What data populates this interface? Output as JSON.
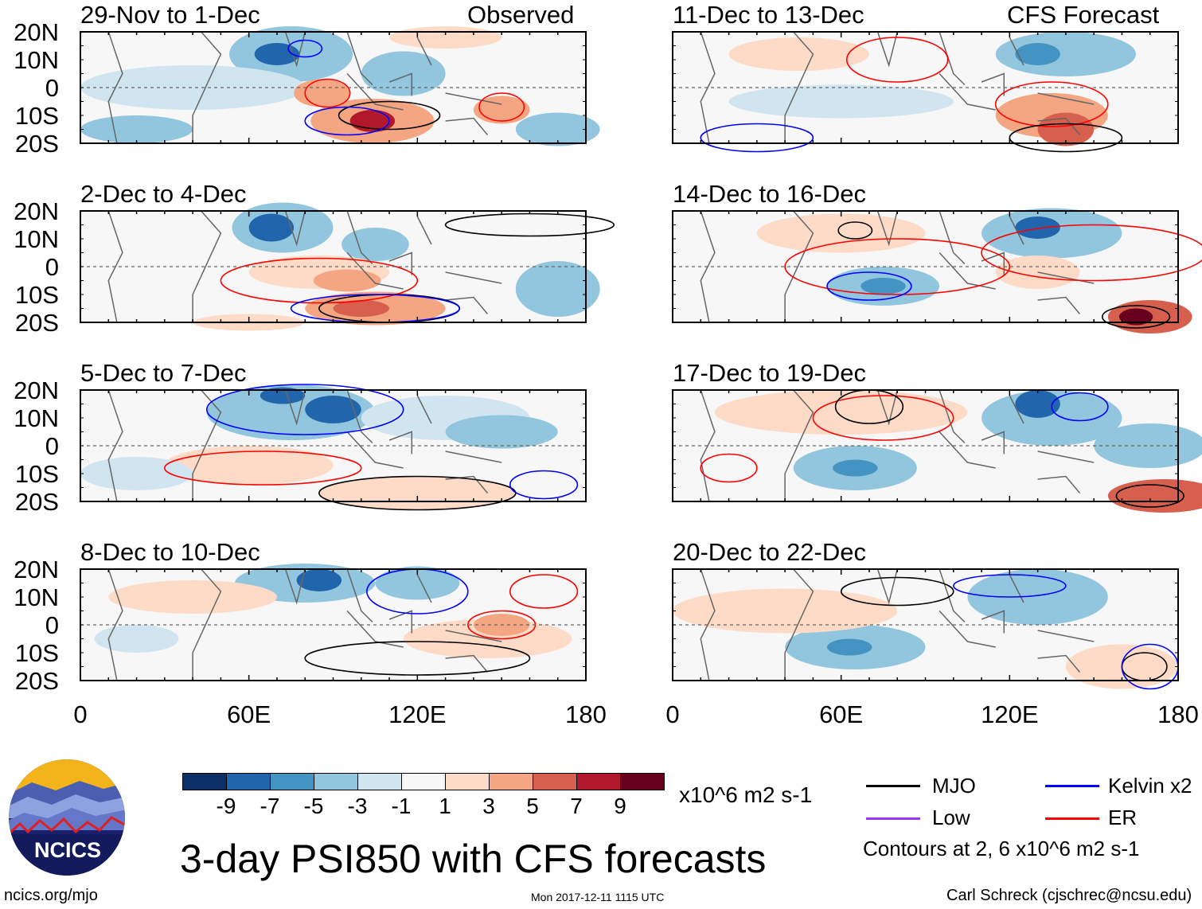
{
  "figure_title": "3-day PSI850 with CFS forecasts",
  "left_header_right": "Observed",
  "right_header_right": "CFS Forecast",
  "panels_left": [
    {
      "title": "29-Nov to 1-Dec"
    },
    {
      "title": "2-Dec to 4-Dec"
    },
    {
      "title": "5-Dec to 7-Dec"
    },
    {
      "title": "8-Dec to 10-Dec"
    }
  ],
  "panels_right": [
    {
      "title": "11-Dec to 13-Dec"
    },
    {
      "title": "14-Dec to 16-Dec"
    },
    {
      "title": "17-Dec to 19-Dec"
    },
    {
      "title": "20-Dec to 22-Dec"
    }
  ],
  "lat_labels": [
    "20N",
    "10N",
    "0",
    "10S",
    "20S"
  ],
  "lon_labels": [
    "0",
    "60E",
    "120E",
    "180"
  ],
  "colorbar": {
    "labels": [
      "-9",
      "-7",
      "-5",
      "-3",
      "-1",
      "1",
      "3",
      "5",
      "7",
      "9"
    ],
    "colors": [
      "#0b2f66",
      "#2166ac",
      "#4393c3",
      "#92c5de",
      "#d1e5f0",
      "#f7f7f7",
      "#fddbc7",
      "#f4a582",
      "#d6604d",
      "#b2182b",
      "#67001f"
    ],
    "units": "x10^6 m2 s-1"
  },
  "legend": {
    "items": [
      {
        "label": "MJO",
        "color": "#000000"
      },
      {
        "label": "Kelvin x2",
        "color": "#0000ff"
      },
      {
        "label": "Low",
        "color": "#9933ff"
      },
      {
        "label": "ER",
        "color": "#ff0000"
      }
    ],
    "note": "Contours at 2, 6 x10^6 m2 s-1"
  },
  "logo_text": "NCICS",
  "footer": {
    "url": "ncics.org/mjo",
    "timestamp": "Mon 2017-12-11 1115 UTC",
    "credit": "Carl Schreck (cjschrec@ncsu.edu)"
  }
}
